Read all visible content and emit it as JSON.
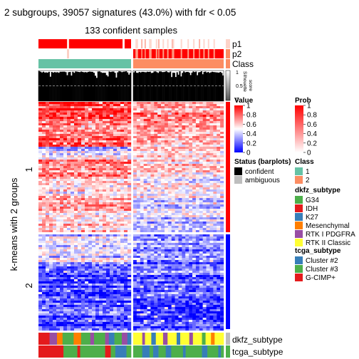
{
  "chart_data": {
    "type": "heatmap",
    "title": "2 subgroups, 39057 signatures (43.0%) with fdr < 0.05",
    "subtitle": "133 confident samples",
    "ylabel": "k-means with 2 groups",
    "row_groups": [
      "1",
      "2"
    ],
    "column_groups": [
      "1",
      "2"
    ],
    "top_annotations": [
      {
        "name": "p1"
      },
      {
        "name": "p2"
      },
      {
        "name": "Class"
      }
    ],
    "silhouette": {
      "label": "Silhouette\nscore",
      "ticks": [
        "1",
        "0.5",
        "0"
      ]
    },
    "bottom_annotations": [
      {
        "name": "dkfz_subtype"
      },
      {
        "name": "tcga_subtype"
      }
    ],
    "legends": {
      "value": {
        "title": "Value",
        "ticks": [
          "1",
          "0.8",
          "0.6",
          "0.4",
          "0.2",
          "0"
        ],
        "colors": [
          "#ff0000",
          "#ffffff",
          "#0000ff"
        ]
      },
      "prob": {
        "title": "Prob",
        "ticks": [
          "1",
          "0.8",
          "0.6",
          "0.4",
          "0.2",
          "0"
        ],
        "colors": [
          "#ff0000",
          "#ffffff"
        ]
      },
      "status": {
        "title": "Status (barplots)",
        "items": [
          {
            "label": "confident",
            "color": "#000000"
          },
          {
            "label": "ambiguous",
            "color": "#bebebe"
          }
        ]
      },
      "class": {
        "title": "Class",
        "items": [
          {
            "label": "1",
            "color": "#66c2a5"
          },
          {
            "label": "2",
            "color": "#fc8d62"
          }
        ]
      },
      "dkfz_subtype": {
        "title": "dkfz_subtype",
        "items": [
          {
            "label": "G34",
            "color": "#4daf4a"
          },
          {
            "label": "IDH",
            "color": "#e41a1c"
          },
          {
            "label": "K27",
            "color": "#377eb8"
          },
          {
            "label": "Mesenchymal",
            "color": "#ff7f00"
          },
          {
            "label": "RTK I PDGFRA",
            "color": "#984ea3"
          },
          {
            "label": "RTK II Classic",
            "color": "#ffff33"
          }
        ]
      },
      "tcga_subtype": {
        "title": "tcga_subtype",
        "items": [
          {
            "label": "Cluster #2",
            "color": "#377eb8"
          },
          {
            "label": "Cluster #3",
            "color": "#4daf4a"
          },
          {
            "label": "G-CIMP+",
            "color": "#e41a1c"
          }
        ]
      }
    }
  }
}
